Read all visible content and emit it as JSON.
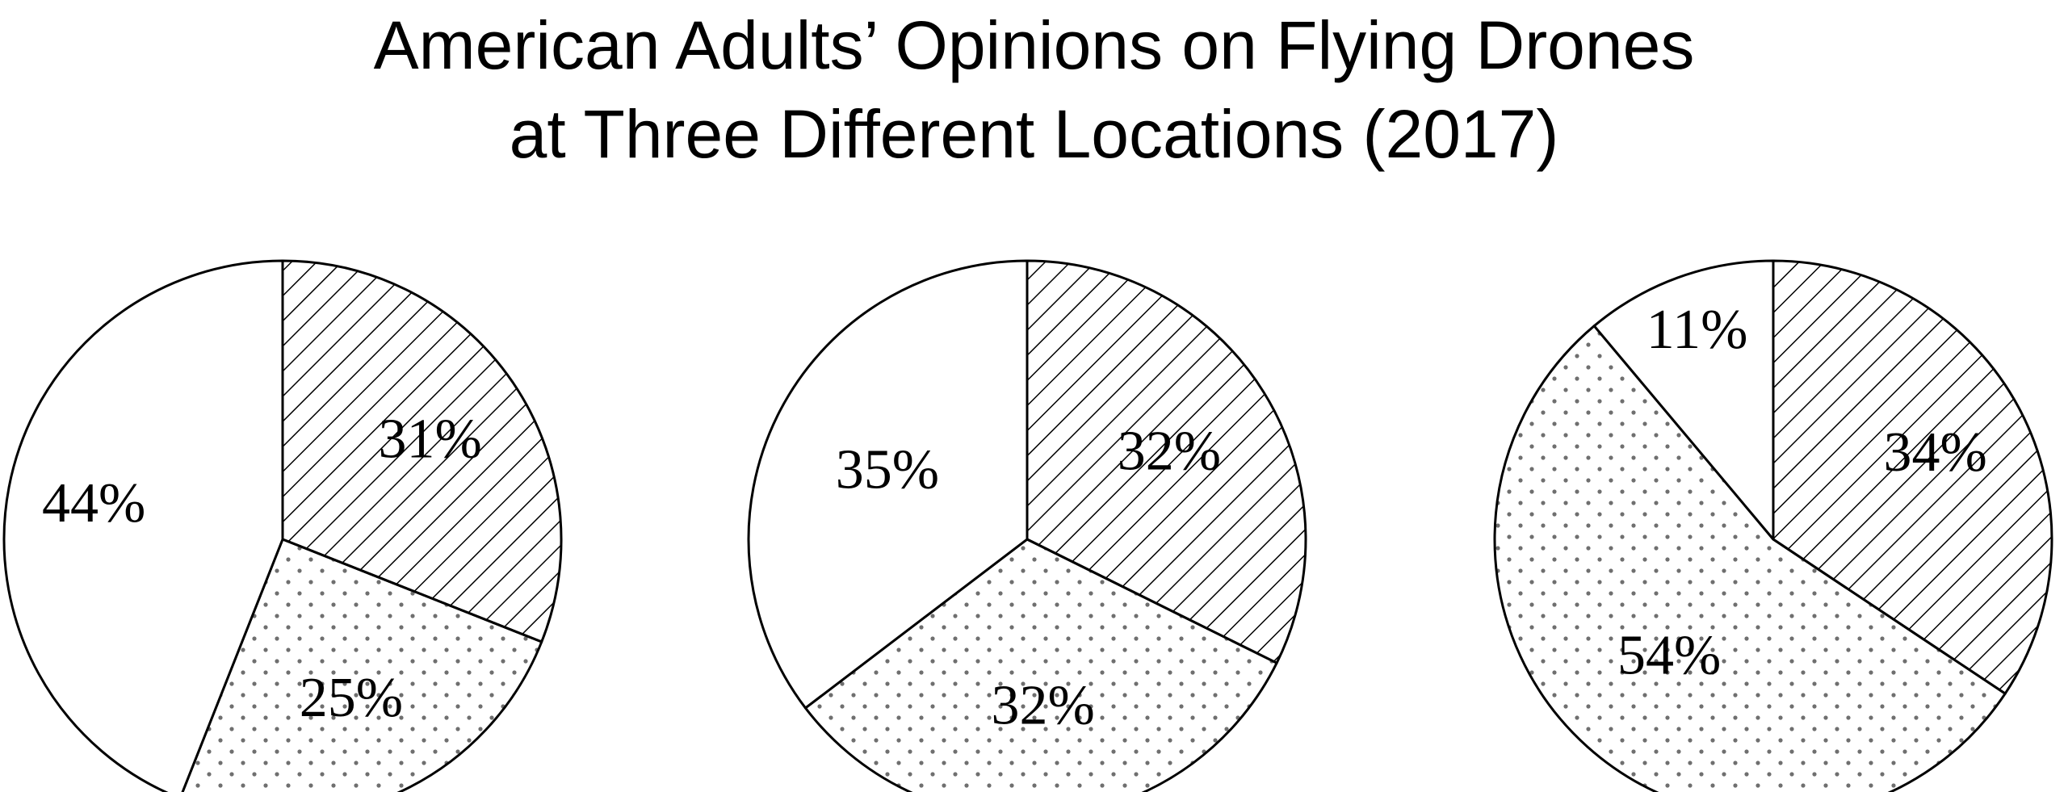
{
  "title": {
    "line1": "American Adults’ Opinions on Flying Drones",
    "line2": "at Three Different Locations (2017)"
  },
  "colors": {
    "stroke": "#000000",
    "background": "#ffffff",
    "hatch": "#000000",
    "dots": "#6f6f6f"
  },
  "chart_data": [
    {
      "type": "pie",
      "slices": [
        {
          "value": 31,
          "label": "31%",
          "pattern": "hatch"
        },
        {
          "value": 25,
          "label": "25%",
          "pattern": "dots"
        },
        {
          "value": 44,
          "label": "44%",
          "pattern": "white"
        }
      ]
    },
    {
      "type": "pie",
      "slices": [
        {
          "value": 32,
          "label": "32%",
          "pattern": "hatch"
        },
        {
          "value": 32,
          "label": "32%",
          "pattern": "dots"
        },
        {
          "value": 35,
          "label": "35%",
          "pattern": "white"
        }
      ]
    },
    {
      "type": "pie",
      "slices": [
        {
          "value": 34,
          "label": "34%",
          "pattern": "hatch"
        },
        {
          "value": 54,
          "label": "54%",
          "pattern": "dots"
        },
        {
          "value": 11,
          "label": "11%",
          "pattern": "white"
        }
      ]
    }
  ]
}
